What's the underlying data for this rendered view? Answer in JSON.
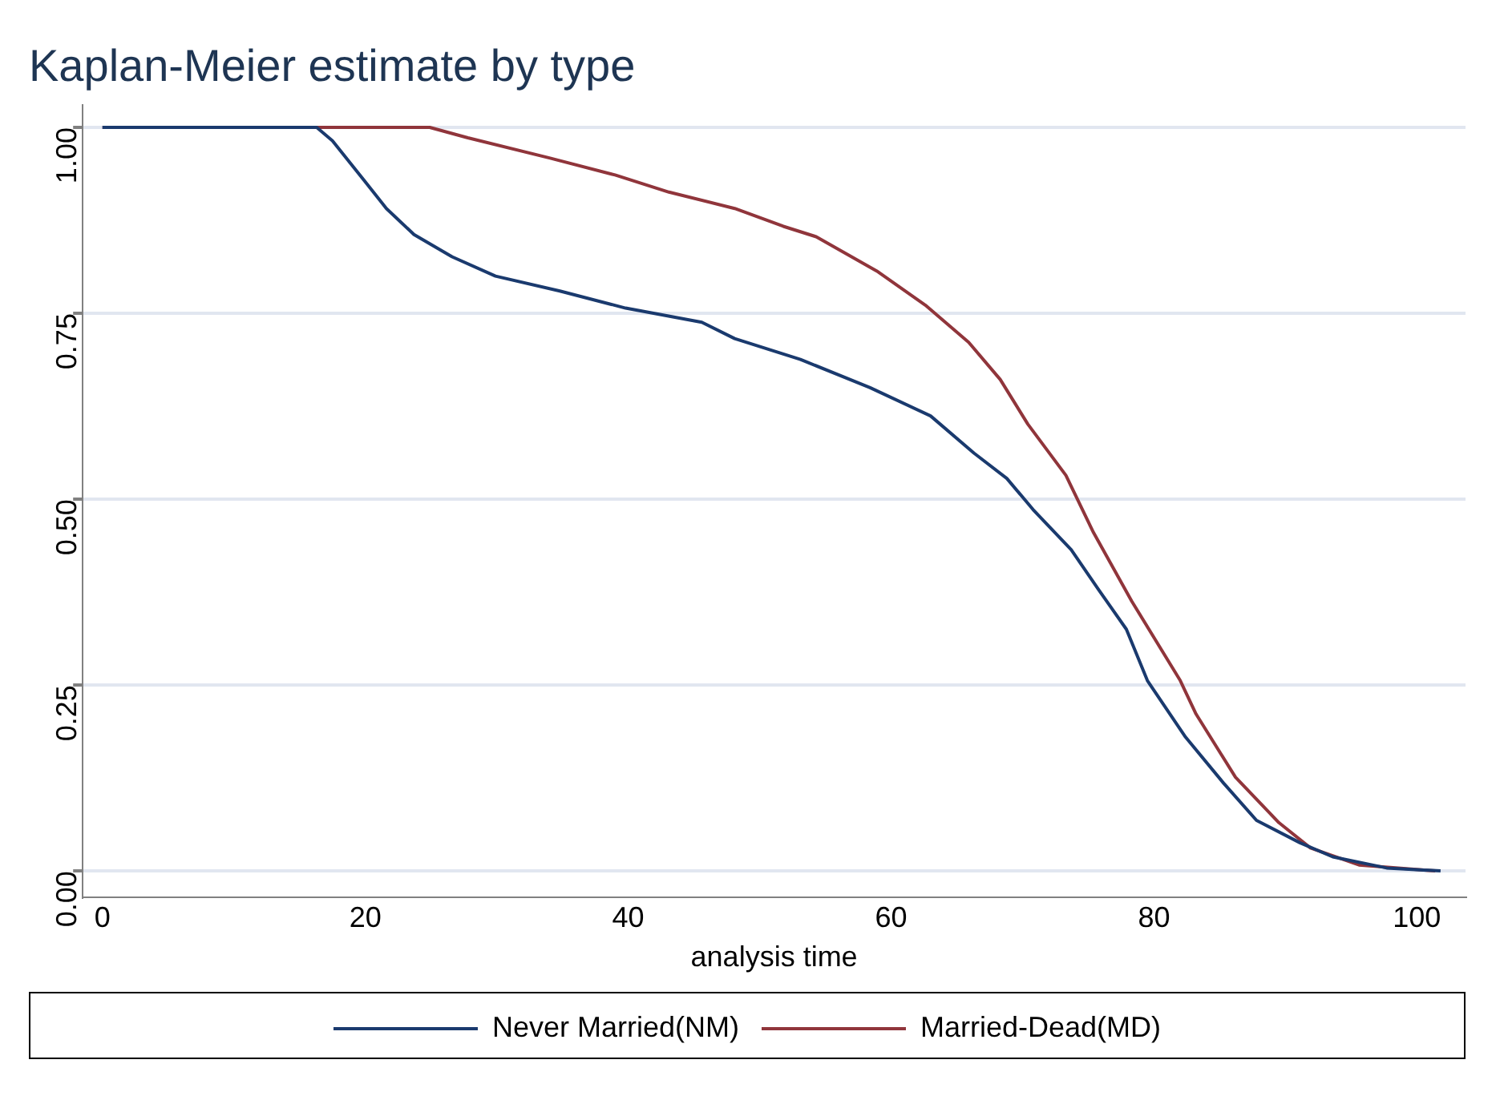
{
  "chart_data": {
    "type": "line",
    "title": "Kaplan-Meier estimate by type",
    "xlabel": "analysis time",
    "xlim": [
      -1.5,
      103.7
    ],
    "xticks": [
      0,
      20,
      40,
      60,
      80,
      100
    ],
    "ylim": [
      -0.035,
      1.03
    ],
    "yticks": [
      {
        "value": 0,
        "label": "0.00"
      },
      {
        "value": 0.25,
        "label": "0.25"
      },
      {
        "value": 0.5,
        "label": "0.50"
      },
      {
        "value": 0.75,
        "label": "0.75"
      },
      {
        "value": 1,
        "label": "1.00"
      }
    ],
    "grid": "y",
    "legend": "bottom",
    "marker": "none",
    "line_style": "solid",
    "series": [
      {
        "name": "Never Married(NM)",
        "color": "#1a3a6e",
        "x": [
          0,
          16.3,
          17.5,
          19.9,
          21.6,
          23.7,
          26.6,
          29.9,
          34.8,
          39.8,
          45.6,
          48.1,
          53.1,
          58.4,
          63.0,
          66.3,
          68.8,
          70.8,
          73.7,
          75.8,
          77.9,
          79.5,
          82.4,
          85.3,
          87.8,
          91.1,
          93.6,
          97.7,
          101.8
        ],
        "values": [
          1,
          1,
          0.982,
          0.929,
          0.891,
          0.856,
          0.826,
          0.8,
          0.78,
          0.757,
          0.738,
          0.716,
          0.688,
          0.65,
          0.612,
          0.562,
          0.528,
          0.486,
          0.432,
          0.378,
          0.325,
          0.256,
          0.18,
          0.118,
          0.068,
          0.038,
          0.019,
          0.004,
          0
        ]
      },
      {
        "name": "Married-Dead(MD)",
        "color": "#90353b",
        "x": [
          0,
          24.9,
          27.8,
          34.0,
          39.0,
          43.1,
          48.1,
          51.8,
          54.3,
          58.9,
          62.6,
          65.9,
          68.3,
          70.4,
          73.3,
          75.4,
          78.3,
          82.0,
          83.2,
          86.2,
          89.5,
          91.9,
          95.6,
          101.4
        ],
        "values": [
          1,
          1,
          0.986,
          0.959,
          0.936,
          0.913,
          0.891,
          0.867,
          0.853,
          0.807,
          0.761,
          0.711,
          0.661,
          0.601,
          0.532,
          0.455,
          0.363,
          0.256,
          0.211,
          0.126,
          0.065,
          0.031,
          0.008,
          0
        ]
      }
    ]
  }
}
